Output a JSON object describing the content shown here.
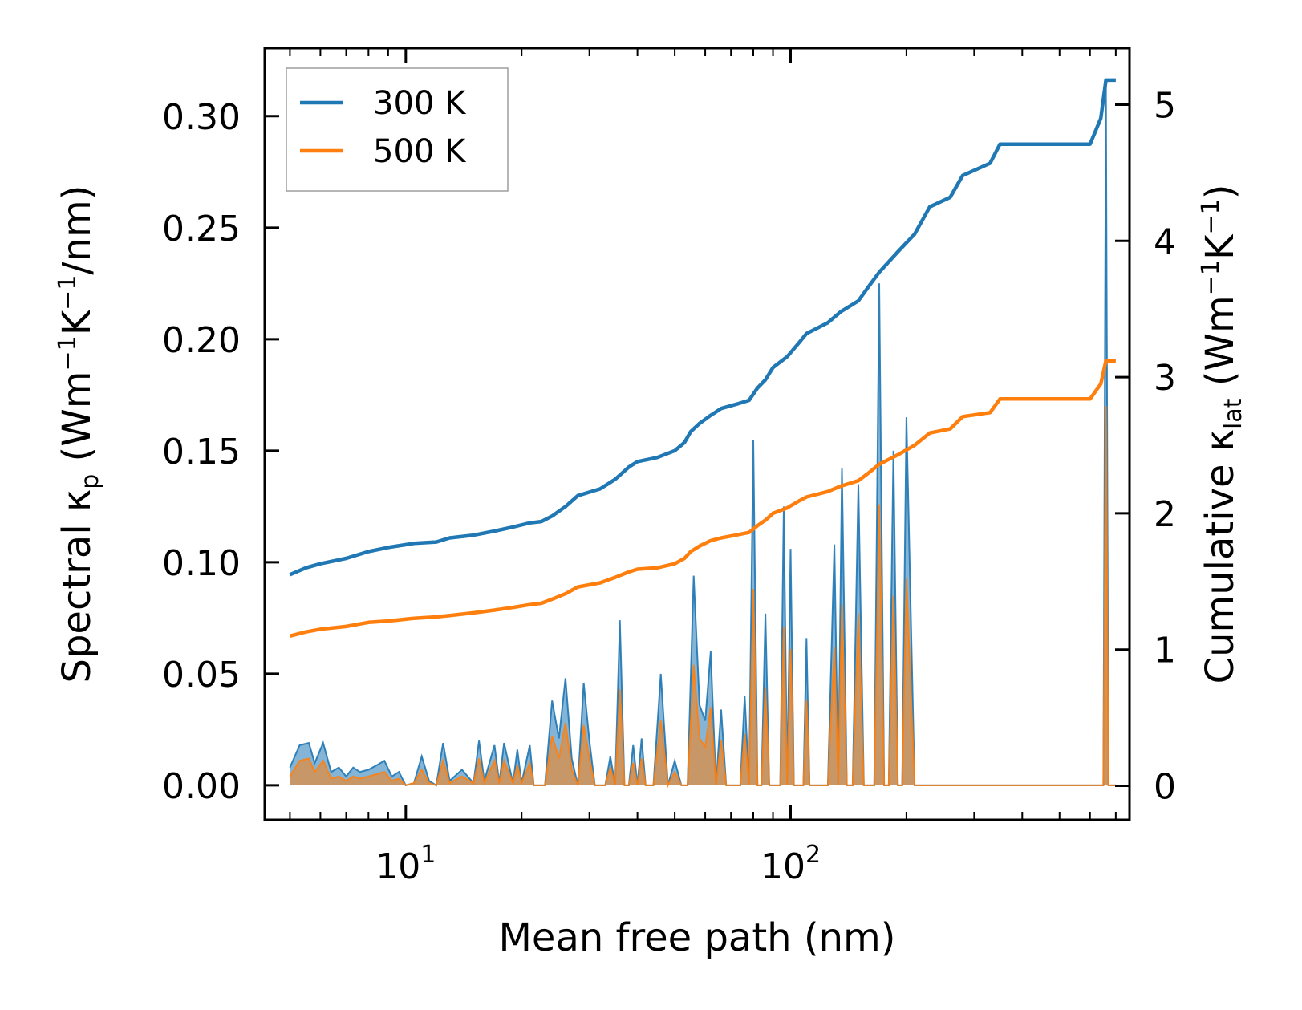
{
  "chart_data": {
    "type": "line",
    "title": "",
    "xlabel": "Mean free path (nm)",
    "xscale": "log",
    "xlim": [
      4.3,
      760
    ],
    "x_ticks": [
      {
        "base": "10",
        "exp": "1",
        "value": 10
      },
      {
        "base": "10",
        "exp": "2",
        "value": 100
      }
    ],
    "ylabel_left": {
      "prefix": "Spectral κ",
      "sub": "p",
      "unit_open": " (Wm",
      "sup1": "−1",
      "mid": "K",
      "sup2": "−1",
      "unit_close": "/nm)"
    },
    "ylim_left": [
      -0.0155,
      0.3305
    ],
    "yticks_left": [
      "0.00",
      "0.05",
      "0.10",
      "0.15",
      "0.20",
      "0.25",
      "0.30"
    ],
    "ylabel_right": {
      "prefix": "Cumulative κ",
      "sub": "lat",
      "unit_open": " (Wm",
      "sup1": "−1",
      "mid": "K",
      "sup2": "−1",
      "unit_close": ")"
    },
    "ylim_right": [
      -0.25,
      5.415
    ],
    "yticks_right": [
      "0",
      "1",
      "2",
      "3",
      "4",
      "5"
    ],
    "legend": {
      "position": "top-left",
      "entries": [
        "300 K",
        "500 K"
      ]
    },
    "colors": {
      "s300": "#1f77b4",
      "s500": "#ff7f0e",
      "fill300": "#1f77b4",
      "fill500": "#ff7f0e"
    },
    "cumulative_series": [
      {
        "name": "300 K",
        "axis": "right",
        "x": [
          5,
          5.5,
          6,
          7,
          8,
          9,
          10.5,
          12,
          13,
          15,
          17,
          19,
          21,
          22.5,
          24,
          26,
          28,
          32,
          35,
          38,
          40,
          45,
          50,
          53,
          55,
          58,
          62,
          66,
          72,
          78,
          82,
          86,
          90,
          98,
          105,
          110,
          125,
          135,
          150,
          160,
          170,
          190,
          210,
          230,
          260,
          280,
          330,
          350,
          400,
          600,
          640,
          660,
          700
        ],
        "y": [
          1.55,
          1.6,
          1.63,
          1.67,
          1.72,
          1.75,
          1.78,
          1.79,
          1.82,
          1.84,
          1.87,
          1.9,
          1.93,
          1.94,
          1.98,
          2.05,
          2.13,
          2.18,
          2.25,
          2.34,
          2.38,
          2.41,
          2.46,
          2.52,
          2.6,
          2.66,
          2.72,
          2.77,
          2.8,
          2.83,
          2.92,
          2.98,
          3.07,
          3.15,
          3.25,
          3.32,
          3.4,
          3.48,
          3.56,
          3.67,
          3.77,
          3.92,
          4.05,
          4.25,
          4.32,
          4.48,
          4.57,
          4.71,
          4.71,
          4.71,
          4.9,
          5.18,
          5.18
        ]
      },
      {
        "name": "500 K",
        "axis": "right",
        "x": [
          5,
          5.5,
          6,
          7,
          8,
          9,
          10.5,
          12,
          13,
          15,
          17,
          19,
          21,
          22.5,
          24,
          26,
          28,
          32,
          35,
          38,
          40,
          45,
          50,
          53,
          55,
          58,
          62,
          66,
          72,
          78,
          82,
          86,
          90,
          98,
          105,
          110,
          125,
          135,
          150,
          160,
          170,
          190,
          210,
          230,
          260,
          280,
          330,
          350,
          400,
          600,
          640,
          660,
          700
        ],
        "y": [
          1.1,
          1.13,
          1.15,
          1.17,
          1.2,
          1.21,
          1.23,
          1.24,
          1.25,
          1.27,
          1.29,
          1.31,
          1.33,
          1.34,
          1.37,
          1.41,
          1.46,
          1.49,
          1.53,
          1.57,
          1.59,
          1.6,
          1.63,
          1.67,
          1.72,
          1.76,
          1.8,
          1.82,
          1.84,
          1.86,
          1.91,
          1.95,
          2.0,
          2.04,
          2.09,
          2.12,
          2.16,
          2.2,
          2.24,
          2.3,
          2.36,
          2.43,
          2.5,
          2.59,
          2.62,
          2.71,
          2.74,
          2.84,
          2.84,
          2.84,
          2.95,
          3.12,
          3.12
        ]
      }
    ],
    "spectral_series": [
      {
        "name": "300 K spectral",
        "axis": "left",
        "x": [
          5,
          5.3,
          5.6,
          5.8,
          6.1,
          6.4,
          6.7,
          7,
          7.3,
          7.6,
          8,
          8.4,
          8.8,
          9.2,
          9.6,
          10,
          10.5,
          11,
          11.5,
          12,
          12.5,
          13,
          14,
          15,
          15.5,
          16,
          17,
          17.5,
          18,
          19,
          19.5,
          20,
          21,
          21.5,
          22,
          23,
          24,
          25,
          26,
          27,
          28,
          29,
          30,
          31,
          33,
          34,
          35,
          36,
          37,
          38,
          39,
          40,
          41,
          42,
          44,
          46,
          48,
          50,
          52,
          54,
          56,
          58,
          60,
          62,
          64,
          66,
          68,
          70,
          72,
          74,
          76,
          78,
          80,
          82,
          84,
          86,
          88,
          90,
          92,
          94,
          96,
          98,
          100,
          102,
          104,
          106,
          108,
          110,
          112,
          115,
          120,
          125,
          130,
          133,
          136,
          140,
          145,
          150,
          155,
          160,
          165,
          170,
          175,
          180,
          185,
          190,
          195,
          200,
          210,
          220,
          230,
          240,
          250,
          260,
          270,
          280,
          290,
          300,
          310,
          320,
          330,
          340,
          350,
          360,
          380,
          400,
          450,
          500,
          550,
          600,
          630,
          650,
          660,
          670,
          680,
          700
        ],
        "y": [
          0.008,
          0.018,
          0.019,
          0.01,
          0.019,
          0.006,
          0.008,
          0.004,
          0.008,
          0.006,
          0.007,
          0.009,
          0.011,
          0.004,
          0.006,
          0.0,
          0.001,
          0.013,
          0.002,
          0.0,
          0.019,
          0.002,
          0.007,
          0.001,
          0.02,
          0.002,
          0.018,
          0.001,
          0.019,
          0.001,
          0.016,
          0.001,
          0.018,
          0.0,
          0.0,
          0.0,
          0.038,
          0.021,
          0.048,
          0.012,
          0.0,
          0.046,
          0.02,
          0.0,
          0.0,
          0.013,
          0.0,
          0.074,
          0.0,
          0.0,
          0.018,
          0.0,
          0.021,
          0.0,
          0.0,
          0.05,
          0.0,
          0.011,
          0.0,
          0.0,
          0.094,
          0.036,
          0.029,
          0.06,
          0.0,
          0.034,
          0.0,
          0.0,
          0.0,
          0.0,
          0.04,
          0.0,
          0.155,
          0.0,
          0.0,
          0.077,
          0.0,
          0.0,
          0.0,
          0.0,
          0.125,
          0.0,
          0.106,
          0.0,
          0.0,
          0.0,
          0.0,
          0.066,
          0.0,
          0.0,
          0.0,
          0.0,
          0.108,
          0.0,
          0.142,
          0.0,
          0.0,
          0.135,
          0.0,
          0.0,
          0.0,
          0.225,
          0.0,
          0.0,
          0.15,
          0.0,
          0.0,
          0.165,
          0.0,
          0.0,
          0.0,
          0.0,
          0.0,
          0.0,
          0.0,
          0.0,
          0.0,
          0.0,
          0.0,
          0.0,
          0.0,
          0.0,
          0.0,
          0.0,
          0.0,
          0.0,
          0.0,
          0.0,
          0.0,
          0.0,
          0.0,
          0.0,
          0.315,
          0.0,
          0.0,
          0.0
        ]
      },
      {
        "name": "500 K spectral",
        "axis": "left",
        "x": [
          5,
          5.3,
          5.6,
          5.8,
          6.1,
          6.4,
          6.7,
          7,
          7.3,
          7.6,
          8,
          8.4,
          8.8,
          9.2,
          9.6,
          10,
          10.5,
          11,
          11.5,
          12,
          12.5,
          13,
          14,
          15,
          15.5,
          16,
          17,
          17.5,
          18,
          19,
          19.5,
          20,
          21,
          21.5,
          22,
          23,
          24,
          25,
          26,
          27,
          28,
          29,
          30,
          31,
          33,
          34,
          35,
          36,
          37,
          38,
          39,
          40,
          41,
          42,
          44,
          46,
          48,
          50,
          52,
          54,
          56,
          58,
          60,
          62,
          64,
          66,
          68,
          70,
          72,
          74,
          76,
          78,
          80,
          82,
          84,
          86,
          88,
          90,
          92,
          94,
          96,
          98,
          100,
          102,
          104,
          106,
          108,
          110,
          112,
          115,
          120,
          125,
          130,
          133,
          136,
          140,
          145,
          150,
          155,
          160,
          165,
          170,
          175,
          180,
          185,
          190,
          195,
          200,
          210,
          220,
          230,
          240,
          250,
          260,
          270,
          280,
          290,
          300,
          310,
          320,
          330,
          340,
          350,
          360,
          380,
          400,
          450,
          500,
          550,
          600,
          630,
          650,
          660,
          670,
          680,
          700
        ],
        "y": [
          0.004,
          0.011,
          0.012,
          0.006,
          0.011,
          0.003,
          0.004,
          0.002,
          0.004,
          0.003,
          0.004,
          0.005,
          0.006,
          0.002,
          0.003,
          0.0,
          0.001,
          0.007,
          0.001,
          0.0,
          0.011,
          0.001,
          0.004,
          0.001,
          0.012,
          0.001,
          0.011,
          0.001,
          0.011,
          0.001,
          0.009,
          0.001,
          0.01,
          0.0,
          0.0,
          0.0,
          0.022,
          0.012,
          0.028,
          0.007,
          0.0,
          0.027,
          0.012,
          0.0,
          0.0,
          0.008,
          0.0,
          0.043,
          0.0,
          0.0,
          0.01,
          0.0,
          0.012,
          0.0,
          0.0,
          0.029,
          0.0,
          0.006,
          0.0,
          0.0,
          0.054,
          0.021,
          0.017,
          0.035,
          0.0,
          0.02,
          0.0,
          0.0,
          0.0,
          0.0,
          0.023,
          0.0,
          0.088,
          0.0,
          0.0,
          0.044,
          0.0,
          0.0,
          0.0,
          0.0,
          0.071,
          0.0,
          0.061,
          0.0,
          0.0,
          0.0,
          0.0,
          0.038,
          0.0,
          0.0,
          0.0,
          0.0,
          0.062,
          0.0,
          0.081,
          0.0,
          0.0,
          0.077,
          0.0,
          0.0,
          0.0,
          0.126,
          0.0,
          0.0,
          0.085,
          0.0,
          0.0,
          0.093,
          0.0,
          0.0,
          0.0,
          0.0,
          0.0,
          0.0,
          0.0,
          0.0,
          0.0,
          0.0,
          0.0,
          0.0,
          0.0,
          0.0,
          0.0,
          0.0,
          0.0,
          0.0,
          0.0,
          0.0,
          0.0,
          0.0,
          0.0,
          0.0,
          0.17,
          0.0,
          0.0,
          0.0
        ]
      }
    ]
  }
}
